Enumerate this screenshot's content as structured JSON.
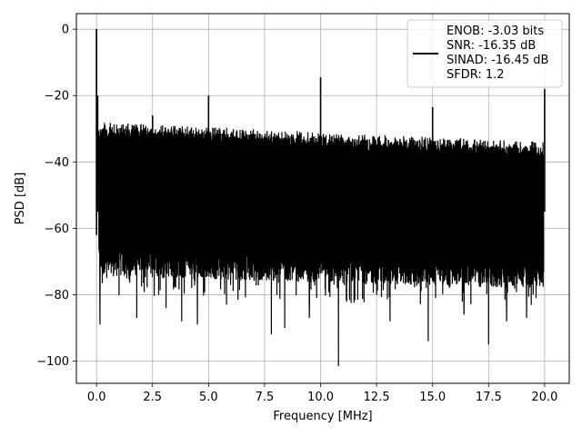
{
  "chart_data": {
    "type": "line",
    "xlabel": "Frequency [MHz]",
    "ylabel": "PSD [dB]",
    "xlim": [
      -0.9,
      21.1
    ],
    "ylim": [
      -106.7,
      4.7
    ],
    "xticks": [
      0,
      2.5,
      5,
      7.5,
      10,
      12.5,
      15,
      17.5,
      20
    ],
    "xtick_labels": [
      "0.0",
      "2.5",
      "5.0",
      "7.5",
      "10.0",
      "12.5",
      "15.0",
      "17.5",
      "20.0"
    ],
    "yticks": [
      0,
      -20,
      -40,
      -60,
      -80,
      -100
    ],
    "ytick_labels": [
      "0",
      "−20",
      "−40",
      "−60",
      "−80",
      "−100"
    ],
    "grid": true,
    "legend_placement": "top-right",
    "series": [
      {
        "name": "ENOB: -3.03 bits\nSNR: -16.35 dB\nSINAD: -16.45 dB\nSFDR: 1.2",
        "legend_lines": [
          "ENOB: -3.03 bits",
          "SNR: -16.35 dB",
          "SINAD: -16.45 dB",
          "SFDR: 1.2"
        ],
        "color": "#000000",
        "noise_band": {
          "x_start": 0.1,
          "x_end": 19.95,
          "floor_top_start": -28,
          "floor_top_end": -34,
          "floor_bottom_start": -72,
          "floor_bottom_end": -76
        },
        "spikes": [
          {
            "x": 0.0,
            "y": 0
          },
          {
            "x": 0.05,
            "y": -20
          },
          {
            "x": 2.5,
            "y": -26
          },
          {
            "x": 5.0,
            "y": -20
          },
          {
            "x": 10.0,
            "y": -14.5
          },
          {
            "x": 15.0,
            "y": -23.5
          },
          {
            "x": 20.0,
            "y": -18
          }
        ],
        "dips": [
          {
            "x": 0.15,
            "y": -89
          },
          {
            "x": 1.8,
            "y": -87
          },
          {
            "x": 3.1,
            "y": -84
          },
          {
            "x": 3.8,
            "y": -88
          },
          {
            "x": 4.5,
            "y": -89
          },
          {
            "x": 5.8,
            "y": -83
          },
          {
            "x": 7.8,
            "y": -92
          },
          {
            "x": 8.4,
            "y": -90
          },
          {
            "x": 9.5,
            "y": -87
          },
          {
            "x": 10.8,
            "y": -101.5
          },
          {
            "x": 13.1,
            "y": -88
          },
          {
            "x": 14.8,
            "y": -94
          },
          {
            "x": 16.4,
            "y": -86
          },
          {
            "x": 17.5,
            "y": -95
          },
          {
            "x": 18.3,
            "y": -88
          },
          {
            "x": 19.2,
            "y": -87
          }
        ]
      }
    ]
  }
}
